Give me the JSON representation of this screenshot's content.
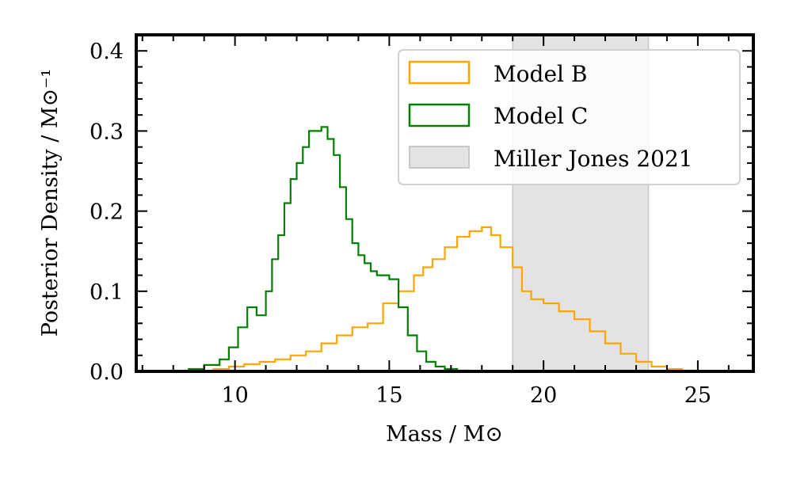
{
  "chart_data": {
    "type": "histogram",
    "xlabel": "Mass / M⊙",
    "ylabel": "Posterior Density / M⊙⁻¹",
    "xlim": [
      6.8,
      26.8
    ],
    "ylim": [
      0,
      0.42
    ],
    "xticks": [
      10,
      15,
      20,
      25
    ],
    "yticks": [
      0.0,
      0.1,
      0.2,
      0.3,
      0.4
    ],
    "xtick_labels": [
      "10",
      "15",
      "20",
      "25"
    ],
    "ytick_labels": [
      "0.0",
      "0.1",
      "0.2",
      "0.3",
      "0.4"
    ],
    "legend_position": "top-right",
    "shaded_region": {
      "name": "Miller Jones 2021",
      "x_range": [
        19.0,
        23.4
      ],
      "color": "#e3e3e3",
      "edge_color": "#c8c8c8"
    },
    "series": [
      {
        "name": "Model B",
        "color": "#ffa500",
        "x": [
          8.8,
          9.3,
          9.8,
          10.3,
          10.8,
          11.3,
          11.8,
          12.3,
          12.8,
          13.3,
          13.8,
          14.3,
          14.8,
          15.3,
          15.8,
          16.1,
          16.4,
          16.8,
          17.2,
          17.6,
          18.0,
          18.3,
          18.6,
          19.0,
          19.3,
          19.6,
          20.0,
          20.5,
          21.0,
          21.5,
          22.0,
          22.5,
          23.0,
          23.5,
          24.0,
          24.5,
          25.0
        ],
        "values": [
          0.0,
          0.003,
          0.006,
          0.009,
          0.012,
          0.015,
          0.02,
          0.025,
          0.035,
          0.045,
          0.055,
          0.06,
          0.085,
          0.1,
          0.12,
          0.13,
          0.14,
          0.155,
          0.168,
          0.175,
          0.18,
          0.17,
          0.155,
          0.13,
          0.1,
          0.09,
          0.085,
          0.075,
          0.065,
          0.05,
          0.035,
          0.022,
          0.012,
          0.006,
          0.003,
          0.001,
          0.0
        ]
      },
      {
        "name": "Model C",
        "color": "#008000",
        "x": [
          8.0,
          8.5,
          9.0,
          9.5,
          9.8,
          10.1,
          10.4,
          10.7,
          11.0,
          11.2,
          11.4,
          11.6,
          11.8,
          12.0,
          12.2,
          12.4,
          12.6,
          12.8,
          13.0,
          13.2,
          13.4,
          13.6,
          13.8,
          14.0,
          14.2,
          14.4,
          14.6,
          14.8,
          15.0,
          15.3,
          15.6,
          15.9,
          16.2,
          16.5,
          16.8,
          17.2,
          17.6
        ],
        "values": [
          0.0,
          0.003,
          0.008,
          0.015,
          0.03,
          0.055,
          0.08,
          0.07,
          0.1,
          0.14,
          0.17,
          0.21,
          0.24,
          0.26,
          0.28,
          0.3,
          0.3,
          0.305,
          0.29,
          0.27,
          0.23,
          0.19,
          0.16,
          0.145,
          0.135,
          0.125,
          0.12,
          0.12,
          0.115,
          0.08,
          0.045,
          0.025,
          0.012,
          0.006,
          0.003,
          0.001,
          0.0
        ]
      }
    ],
    "legend": [
      "Model B",
      "Model C",
      "Miller Jones 2021"
    ]
  }
}
